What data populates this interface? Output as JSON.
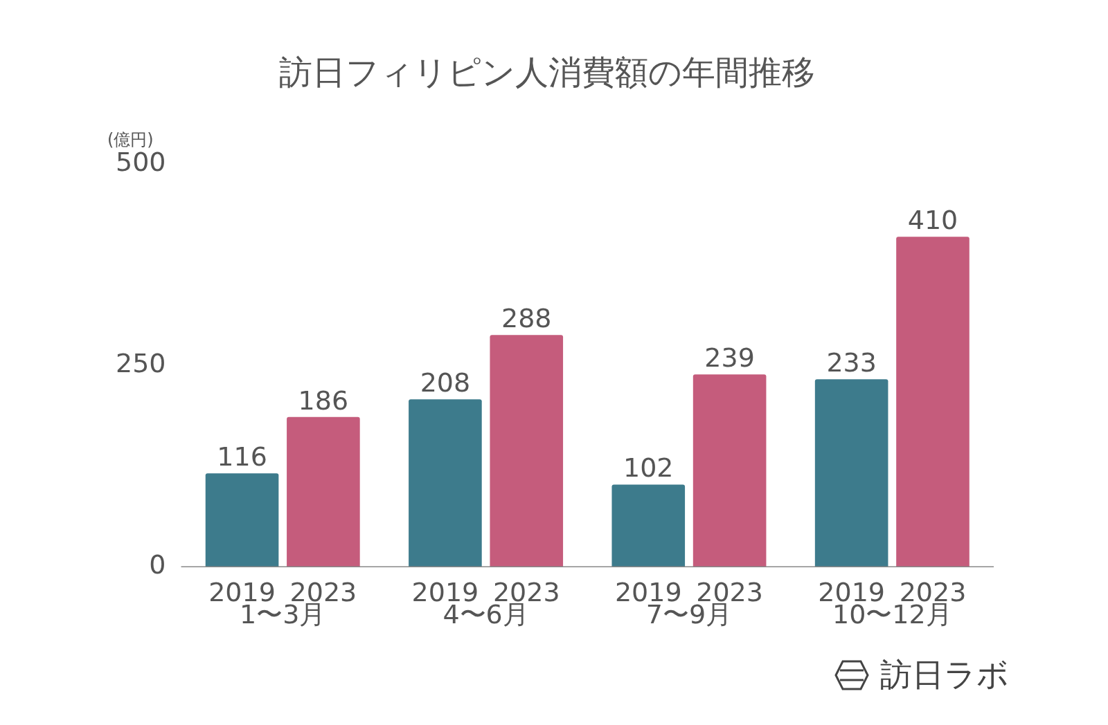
{
  "chart_data": {
    "type": "bar",
    "title": "訪日フィリピン人消費額の年間推移",
    "y_label": "(億円)",
    "categories": [
      "1〜3月",
      "4〜6月",
      "7〜9月",
      "10〜12月"
    ],
    "series": [
      {
        "name": "2019",
        "color": "#3d7b8c",
        "values": [
          116,
          208,
          102,
          233
        ]
      },
      {
        "name": "2023",
        "color": "#c55c7c",
        "values": [
          186,
          288,
          239,
          410
        ]
      }
    ],
    "ylim": [
      0,
      500
    ],
    "yticks": [
      0,
      250,
      500
    ],
    "grid": false,
    "data_labels": true,
    "source": "訪日ラボ"
  }
}
